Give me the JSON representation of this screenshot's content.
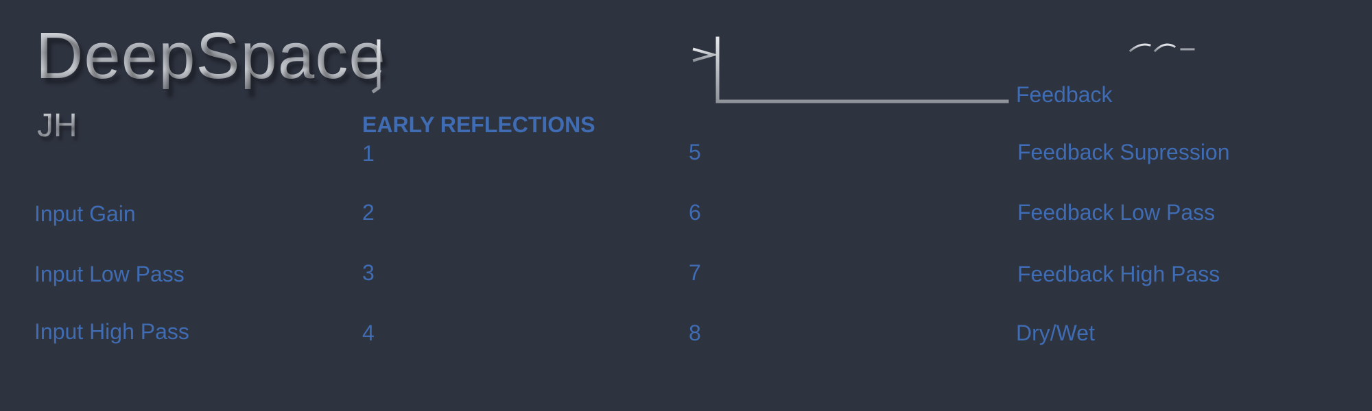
{
  "header": {
    "title": "DeepSpace",
    "initials": "JH"
  },
  "colors": {
    "background": "#2e3340",
    "label": "#3f6cb3",
    "metal": "#b9bcc2"
  },
  "icons": {
    "diagram": "delay-line-diagram-icon"
  },
  "input_controls": [
    {
      "label": "Input Gain"
    },
    {
      "label": "Input Low Pass"
    },
    {
      "label": "Input High Pass"
    }
  ],
  "early_reflections": {
    "heading": "EARLY REFLECTIONS",
    "taps": [
      "1",
      "2",
      "3",
      "4",
      "5",
      "6",
      "7",
      "8"
    ]
  },
  "feedback_controls": [
    {
      "label": "Feedback"
    },
    {
      "label": "Feedback Supression"
    },
    {
      "label": "Feedback Low Pass"
    },
    {
      "label": "Feedback High Pass"
    },
    {
      "label": "Dry/Wet"
    }
  ]
}
